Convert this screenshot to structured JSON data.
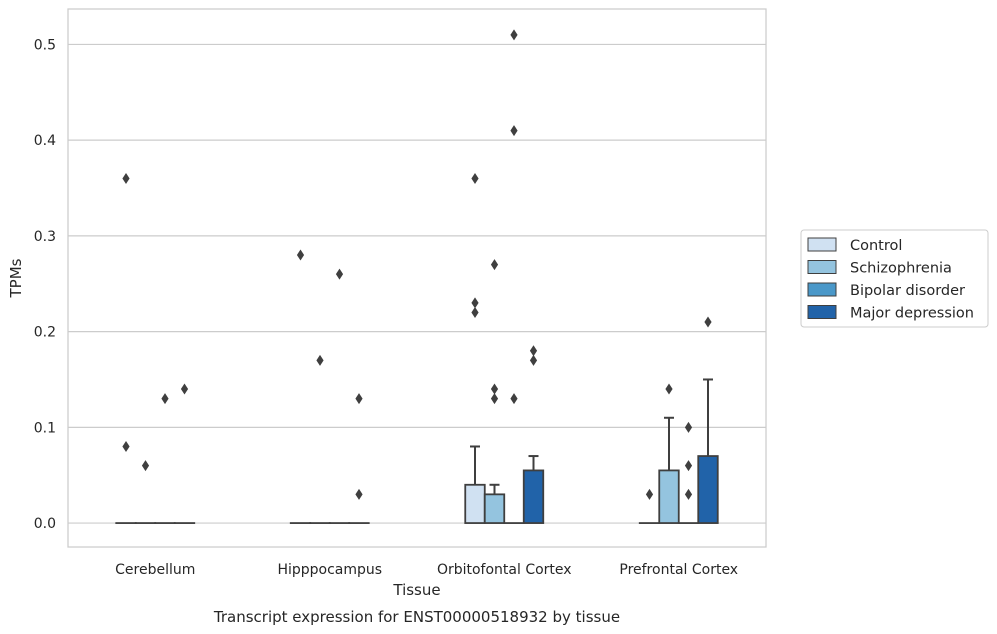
{
  "chart_data": {
    "type": "bar",
    "title": "Transcript expression for ENST00000518932 by tissue",
    "xlabel": "Tissue",
    "ylabel": "TPMs",
    "categories": [
      "Cerebellum",
      "Hipppocampus",
      "Orbitofontal Cortex",
      "Prefrontal Cortex"
    ],
    "ylim": [
      -0.025,
      0.537
    ],
    "yticks": [
      0.0,
      0.1,
      0.2,
      0.3,
      0.4,
      0.5
    ],
    "ytick_labels": [
      "0.0",
      "0.1",
      "0.2",
      "0.3",
      "0.4",
      "0.5"
    ],
    "grid": true,
    "legend_position": "right",
    "series": [
      {
        "name": "Control",
        "color": "#d0e1f2",
        "values": [
          0.0,
          0.0,
          0.04,
          0.0
        ],
        "error_upper": [
          0.0,
          0.0,
          0.08,
          0.0
        ],
        "outliers": [
          [
            0.36,
            0.08
          ],
          [
            0.28
          ],
          [
            0.36,
            0.23,
            0.22
          ],
          [
            0.03
          ]
        ]
      },
      {
        "name": "Schizophrenia",
        "color": "#94c4df",
        "values": [
          0.0,
          0.0,
          0.03,
          0.055
        ],
        "error_upper": [
          0.0,
          0.0,
          0.04,
          0.11
        ],
        "outliers": [
          [
            0.06
          ],
          [
            0.17
          ],
          [
            0.27,
            0.14,
            0.13
          ],
          [
            0.14
          ]
        ]
      },
      {
        "name": "Bipolar disorder",
        "color": "#4a98c9",
        "values": [
          0.0,
          0.0,
          0.0,
          0.0
        ],
        "error_upper": [
          0.0,
          0.0,
          0.0,
          0.0
        ],
        "outliers": [
          [
            0.13
          ],
          [
            0.26
          ],
          [
            0.51,
            0.41,
            0.13
          ],
          [
            0.1,
            0.06,
            0.03
          ]
        ]
      },
      {
        "name": "Major depression",
        "color": "#2163a9",
        "values": [
          0.0,
          0.0,
          0.055,
          0.07
        ],
        "error_upper": [
          0.0,
          0.0,
          0.07,
          0.15
        ],
        "outliers": [
          [
            0.14
          ],
          [
            0.13,
            0.03
          ],
          [
            0.18,
            0.17
          ],
          [
            0.21
          ]
        ]
      }
    ]
  }
}
